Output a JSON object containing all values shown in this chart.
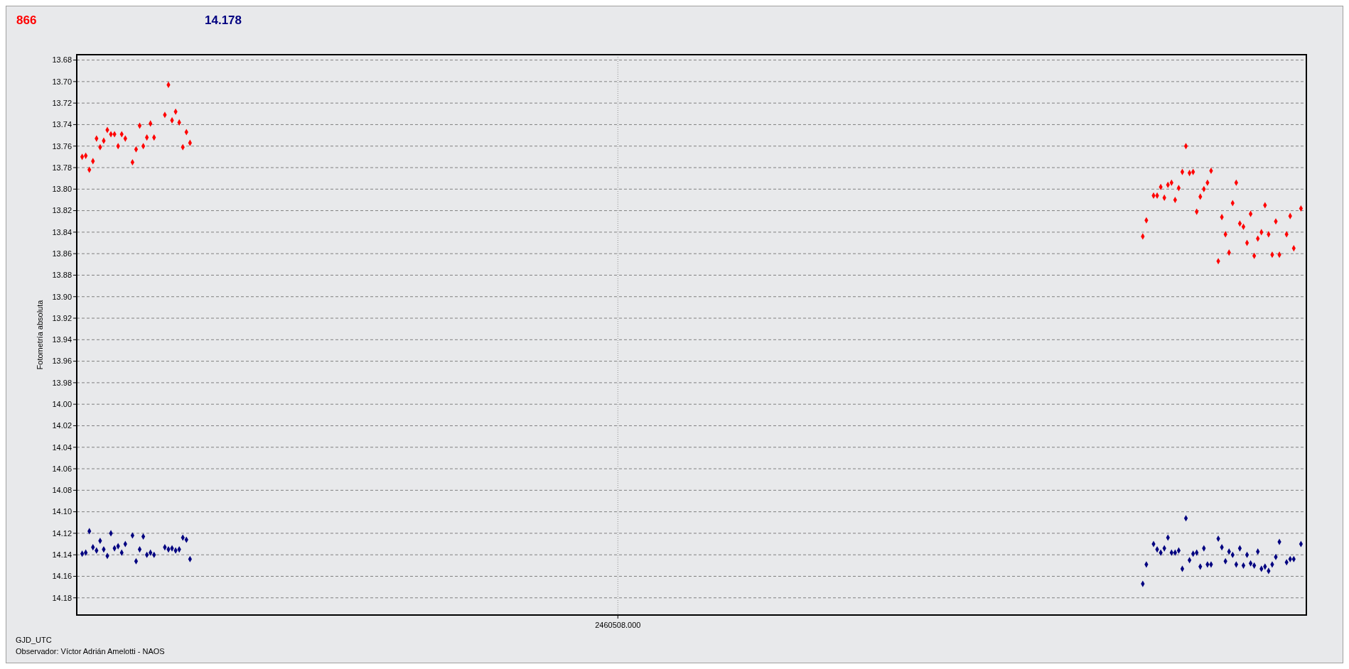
{
  "chart_data": {
    "type": "scatter",
    "ylabel": "Fotometría absoluta",
    "xlabel": "GJD_UTC",
    "annotations": [
      "Observador: Víctor Adrián Amelotti - NAOS"
    ],
    "categories": [
      null,
      null,
      null,
      null,
      null,
      null,
      null,
      null,
      null,
      null,
      null,
      null,
      null,
      null,
      null,
      null,
      null,
      null,
      null,
      null,
      null,
      null,
      null,
      null,
      null,
      null,
      null,
      null,
      null,
      null,
      null,
      null,
      null,
      null,
      null,
      null,
      null,
      null,
      null,
      null,
      null,
      null,
      null,
      null,
      null,
      null,
      null,
      null,
      null,
      null,
      null,
      null,
      null,
      null,
      null,
      null,
      null,
      null,
      null,
      null,
      null,
      null,
      null,
      null,
      null,
      null,
      null,
      null,
      null,
      null,
      null,
      null,
      null,
      null,
      null,
      null,
      null,
      null,
      null,
      null,
      null,
      null,
      null,
      null,
      null,
      null,
      null,
      null,
      null,
      null,
      null,
      null,
      null,
      null,
      null,
      null,
      null,
      null,
      null,
      null,
      null,
      null,
      null,
      null,
      null,
      null,
      null,
      null,
      null,
      null,
      null,
      null,
      null,
      null,
      null,
      null,
      null,
      null,
      null,
      null,
      null,
      null,
      null,
      null,
      null,
      null,
      null,
      null,
      null,
      null,
      null,
      null,
      null,
      null,
      null,
      null,
      null,
      null,
      null,
      null,
      null,
      null,
      null,
      null,
      null,
      null,
      null,
      null,
      null,
      null,
      "2460508.000",
      null,
      null,
      null,
      null,
      null,
      null,
      null,
      null,
      null,
      null,
      null,
      null,
      null,
      null,
      null,
      null,
      null,
      null,
      null,
      null,
      null,
      null,
      null,
      null,
      null,
      null,
      null,
      null,
      null,
      null,
      null,
      null,
      null,
      null,
      null,
      null,
      null,
      null,
      null,
      null,
      null,
      null,
      null,
      null,
      null,
      null,
      null,
      null,
      null,
      null,
      null,
      null,
      null,
      null,
      null,
      null,
      null,
      null,
      null,
      null,
      null,
      null,
      null,
      null,
      null,
      null,
      null,
      null,
      null,
      null,
      null,
      null,
      null,
      null,
      null,
      null,
      null,
      null,
      null,
      null,
      null,
      null,
      null,
      null,
      null,
      null,
      null,
      null,
      null,
      null,
      null,
      null,
      null,
      null,
      null,
      null,
      null,
      null,
      null,
      null,
      null,
      null,
      null,
      null,
      null,
      null,
      null,
      null,
      null,
      null,
      null,
      null,
      null,
      null,
      null,
      null,
      null,
      null,
      null,
      null,
      null,
      null,
      null,
      null,
      null,
      null,
      null,
      null,
      null,
      null,
      null,
      null,
      null,
      null,
      null,
      null,
      null,
      null,
      null,
      null,
      null,
      null,
      null,
      null,
      null,
      null,
      null,
      null,
      null,
      null,
      null,
      null,
      null,
      null,
      null,
      null,
      null,
      null,
      null,
      null,
      null,
      null,
      null,
      null,
      null,
      null,
      null,
      null,
      null,
      null,
      null,
      null,
      null,
      null,
      null,
      null,
      null,
      null,
      null,
      null,
      null,
      null,
      null,
      null,
      null,
      null,
      null,
      null,
      null,
      null,
      null
    ],
    "series": [
      {
        "name": "866",
        "color": "#ff0000",
        "values": [
          null,
          13.77,
          13.769,
          13.782,
          13.774,
          13.753,
          13.761,
          13.755,
          13.745,
          13.749,
          13.749,
          13.76,
          13.749,
          13.753,
          null,
          13.775,
          13.763,
          13.741,
          13.76,
          13.752,
          13.739,
          13.752,
          null,
          null,
          13.731,
          13.703,
          13.736,
          13.728,
          13.738,
          13.761,
          13.747,
          13.757,
          null,
          null,
          null,
          null,
          null,
          null,
          null,
          null,
          null,
          null,
          null,
          null,
          null,
          null,
          null,
          null,
          null,
          null,
          null,
          null,
          null,
          null,
          null,
          null,
          null,
          null,
          null,
          null,
          null,
          null,
          null,
          null,
          null,
          null,
          null,
          null,
          null,
          null,
          null,
          null,
          null,
          null,
          null,
          null,
          null,
          null,
          null,
          null,
          null,
          null,
          null,
          null,
          null,
          null,
          null,
          null,
          null,
          null,
          null,
          null,
          null,
          null,
          null,
          null,
          null,
          null,
          null,
          null,
          null,
          null,
          null,
          null,
          null,
          null,
          null,
          null,
          null,
          null,
          null,
          null,
          null,
          null,
          null,
          null,
          null,
          null,
          null,
          null,
          null,
          null,
          null,
          null,
          null,
          null,
          null,
          null,
          null,
          null,
          null,
          null,
          null,
          null,
          null,
          null,
          null,
          null,
          null,
          null,
          null,
          null,
          null,
          null,
          null,
          null,
          null,
          null,
          null,
          null,
          null,
          null,
          null,
          null,
          null,
          null,
          null,
          null,
          null,
          null,
          null,
          null,
          null,
          null,
          null,
          null,
          null,
          null,
          null,
          null,
          null,
          null,
          null,
          null,
          null,
          null,
          null,
          null,
          null,
          null,
          null,
          null,
          null,
          null,
          null,
          null,
          null,
          null,
          null,
          null,
          null,
          null,
          null,
          null,
          null,
          null,
          null,
          null,
          null,
          null,
          null,
          null,
          null,
          null,
          null,
          null,
          null,
          null,
          null,
          null,
          null,
          null,
          null,
          null,
          null,
          null,
          null,
          null,
          null,
          null,
          null,
          null,
          null,
          null,
          null,
          null,
          null,
          null,
          null,
          null,
          null,
          null,
          null,
          null,
          null,
          null,
          null,
          null,
          null,
          null,
          null,
          null,
          null,
          null,
          null,
          null,
          null,
          null,
          null,
          null,
          null,
          null,
          null,
          null,
          null,
          null,
          null,
          null,
          null,
          null,
          null,
          null,
          null,
          null,
          null,
          null,
          null,
          null,
          null,
          null,
          null,
          null,
          null,
          null,
          null,
          null,
          null,
          null,
          null,
          null,
          null,
          null,
          null,
          null,
          null,
          null,
          null,
          null,
          null,
          null,
          null,
          null,
          null,
          null,
          null,
          null,
          13.844,
          13.829,
          null,
          13.806,
          13.806,
          13.798,
          13.808,
          13.796,
          13.794,
          13.81,
          13.799,
          13.784,
          13.76,
          13.785,
          13.784,
          13.821,
          13.807,
          13.8,
          13.794,
          13.783,
          null,
          13.867,
          13.826,
          13.842,
          13.859,
          13.813,
          13.794,
          13.832,
          13.835,
          13.85,
          13.823,
          13.862,
          13.846,
          13.84,
          13.815,
          13.842,
          13.861,
          13.83,
          13.861,
          null,
          13.842,
          13.825,
          13.855,
          null,
          13.818,
          null
        ]
      },
      {
        "name": "14.178",
        "color": "#000080",
        "values": [
          null,
          14.139,
          14.138,
          14.118,
          14.133,
          14.136,
          14.127,
          14.135,
          14.141,
          14.12,
          14.134,
          14.132,
          14.138,
          14.13,
          null,
          14.122,
          14.146,
          14.135,
          14.123,
          14.14,
          14.138,
          14.14,
          null,
          null,
          14.133,
          14.135,
          14.134,
          14.136,
          14.135,
          14.124,
          14.126,
          14.144,
          null,
          null,
          null,
          null,
          null,
          null,
          null,
          null,
          null,
          null,
          null,
          null,
          null,
          null,
          null,
          null,
          null,
          null,
          null,
          null,
          null,
          null,
          null,
          null,
          null,
          null,
          null,
          null,
          null,
          null,
          null,
          null,
          null,
          null,
          null,
          null,
          null,
          null,
          null,
          null,
          null,
          null,
          null,
          null,
          null,
          null,
          null,
          null,
          null,
          null,
          null,
          null,
          null,
          null,
          null,
          null,
          null,
          null,
          null,
          null,
          null,
          null,
          null,
          null,
          null,
          null,
          null,
          null,
          null,
          null,
          null,
          null,
          null,
          null,
          null,
          null,
          null,
          null,
          null,
          null,
          null,
          null,
          null,
          null,
          null,
          null,
          null,
          null,
          null,
          null,
          null,
          null,
          null,
          null,
          null,
          null,
          null,
          null,
          null,
          null,
          null,
          null,
          null,
          null,
          null,
          null,
          null,
          null,
          null,
          null,
          null,
          null,
          null,
          null,
          null,
          null,
          null,
          null,
          null,
          null,
          null,
          null,
          null,
          null,
          null,
          null,
          null,
          null,
          null,
          null,
          null,
          null,
          null,
          null,
          null,
          null,
          null,
          null,
          null,
          null,
          null,
          null,
          null,
          null,
          null,
          null,
          null,
          null,
          null,
          null,
          null,
          null,
          null,
          null,
          null,
          null,
          null,
          null,
          null,
          null,
          null,
          null,
          null,
          null,
          null,
          null,
          null,
          null,
          null,
          null,
          null,
          null,
          null,
          null,
          null,
          null,
          null,
          null,
          null,
          null,
          null,
          null,
          null,
          null,
          null,
          null,
          null,
          null,
          null,
          null,
          null,
          null,
          null,
          null,
          null,
          null,
          null,
          null,
          null,
          null,
          null,
          null,
          null,
          null,
          null,
          null,
          null,
          null,
          null,
          null,
          null,
          null,
          null,
          null,
          null,
          null,
          null,
          null,
          null,
          null,
          null,
          null,
          null,
          null,
          null,
          null,
          null,
          null,
          null,
          null,
          null,
          null,
          null,
          null,
          null,
          null,
          null,
          null,
          null,
          null,
          null,
          null,
          null,
          null,
          null,
          null,
          null,
          null,
          null,
          null,
          null,
          null,
          null,
          null,
          null,
          null,
          null,
          null,
          null,
          null,
          null,
          null,
          null,
          null,
          14.167,
          14.149,
          null,
          14.13,
          14.135,
          14.138,
          14.134,
          14.124,
          14.138,
          14.138,
          14.136,
          14.153,
          14.106,
          14.145,
          14.139,
          14.138,
          14.151,
          14.134,
          14.149,
          14.149,
          null,
          14.125,
          14.133,
          14.146,
          14.137,
          14.14,
          14.149,
          14.134,
          14.15,
          14.14,
          14.148,
          14.15,
          14.137,
          14.153,
          14.151,
          14.155,
          14.149,
          14.142,
          14.128,
          null,
          14.147,
          14.144,
          14.144,
          null,
          14.13,
          null
        ]
      }
    ],
    "ylim": [
      14.196,
      13.675
    ],
    "yticks": [
      13.68,
      {
        "value": 13.7,
        "label": "13.70"
      },
      13.72,
      13.74,
      13.76,
      13.78,
      {
        "value": 13.8,
        "label": "13.80"
      },
      13.82,
      13.84,
      13.86,
      13.88,
      {
        "value": 13.9,
        "label": "13.90"
      },
      13.92,
      13.94,
      13.96,
      13.98,
      {
        "value": 14.0,
        "label": "14.00"
      },
      14.02,
      14.04,
      14.06,
      14.08,
      {
        "value": 14.1,
        "label": "14.10"
      },
      14.12,
      14.14,
      14.16,
      14.18
    ],
    "grid": true,
    "legend": "top left",
    "marker": "diamond"
  }
}
